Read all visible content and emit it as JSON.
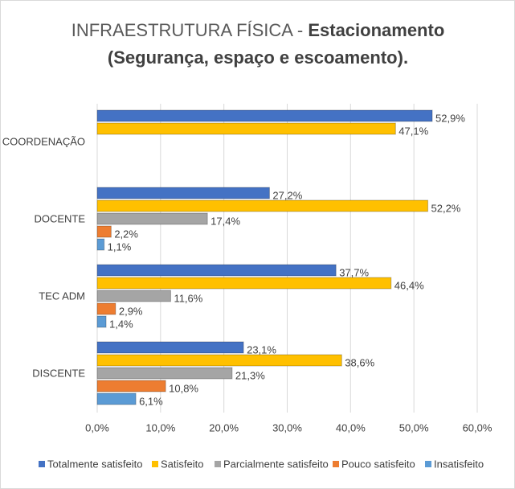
{
  "chart_data": {
    "type": "hbar",
    "title": {
      "regular": "INFRAESTRUTURA FÍSICA -",
      "bold": "Estacionamento (Segurança, espaço e escoamento)."
    },
    "categories": [
      "COORDENAÇÃO",
      "DOCENTE",
      "TEC ADM",
      "DISCENTE"
    ],
    "series": [
      {
        "name": "Totalmente satisfeito",
        "color": "#4472c4",
        "values": [
          52.9,
          27.2,
          37.7,
          23.1
        ],
        "value_labels": [
          "52,9%",
          "27,2%",
          "37,7%",
          "23,1%"
        ]
      },
      {
        "name": "Satisfeito",
        "color": "#ffc000",
        "values": [
          47.1,
          52.2,
          46.4,
          38.6
        ],
        "value_labels": [
          "47,1%",
          "52,2%",
          "46,4%",
          "38,6%"
        ]
      },
      {
        "name": "Parcialmente satisfeito",
        "color": "#a5a5a5",
        "values": [
          null,
          17.4,
          11.6,
          21.3
        ],
        "value_labels": [
          null,
          "17,4%",
          "11,6%",
          "21,3%"
        ]
      },
      {
        "name": "Pouco satisfeito",
        "color": "#ed7d31",
        "values": [
          null,
          2.2,
          2.9,
          10.8
        ],
        "value_labels": [
          null,
          "2,2%",
          "2,9%",
          "10,8%"
        ]
      },
      {
        "name": "Insatisfeito",
        "color": "#5b9bd5",
        "values": [
          null,
          1.1,
          1.4,
          6.1
        ],
        "value_labels": [
          null,
          "1,1%",
          "1,4%",
          "6,1%"
        ]
      }
    ],
    "xlim": [
      0,
      60
    ],
    "xticks": [
      {
        "value": 0,
        "label": "0,0%"
      },
      {
        "value": 10,
        "label": "10,0%"
      },
      {
        "value": 20,
        "label": "20,0%"
      },
      {
        "value": 30,
        "label": "30,0%"
      },
      {
        "value": 40,
        "label": "40,0%"
      },
      {
        "value": 50,
        "label": "50,0%"
      },
      {
        "value": 60,
        "label": "60,0%"
      }
    ],
    "grid": true,
    "legend": "bottom"
  }
}
